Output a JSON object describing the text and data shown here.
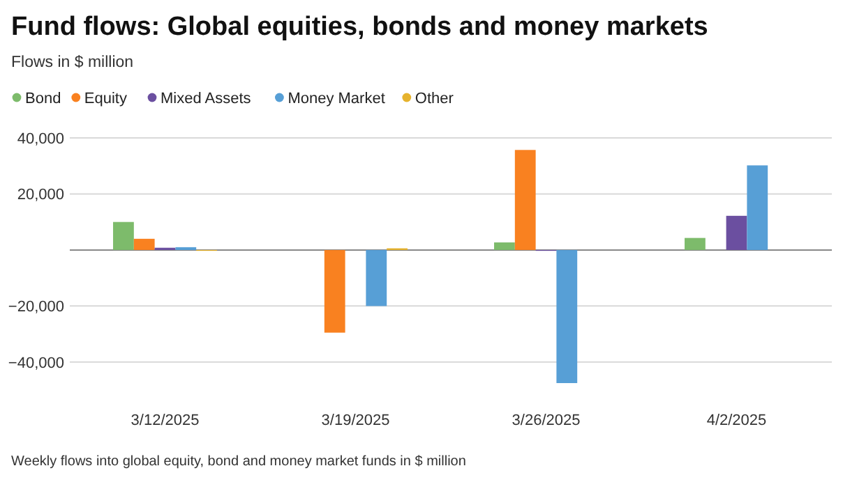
{
  "chart_data": {
    "type": "bar",
    "title": "Fund flows: Global equities, bonds and money markets",
    "subtitle": "Flows in $ million",
    "categories": [
      "3/12/2025",
      "3/19/2025",
      "3/26/2025",
      "4/2/2025"
    ],
    "series": [
      {
        "name": "Bond",
        "color": "#7dbb6b",
        "values": [
          10000,
          0,
          2700,
          4300
        ]
      },
      {
        "name": "Equity",
        "color": "#f98120",
        "values": [
          4000,
          -29500,
          35700,
          0
        ]
      },
      {
        "name": "Mixed Assets",
        "color": "#6b4fa0",
        "values": [
          800,
          0,
          -300,
          12200
        ]
      },
      {
        "name": "Money Market",
        "color": "#579fd6",
        "values": [
          1000,
          -20000,
          -47500,
          30200
        ]
      },
      {
        "name": "Other",
        "color": "#e6b32e",
        "values": [
          -300,
          600,
          0,
          0
        ]
      }
    ],
    "ylim": [
      -47500,
      40000
    ],
    "yticks": [
      {
        "value": -40000,
        "label": "−40,000"
      },
      {
        "value": -20000,
        "label": "−20,000"
      },
      {
        "value": 0,
        "label": null
      },
      {
        "value": 20000,
        "label": "20,000"
      },
      {
        "value": 40000,
        "label": "40,000"
      }
    ],
    "grid": "y",
    "legend": "top left",
    "annotations": [
      "Weekly flows into global equity, bond and money market funds in $ million"
    ]
  }
}
